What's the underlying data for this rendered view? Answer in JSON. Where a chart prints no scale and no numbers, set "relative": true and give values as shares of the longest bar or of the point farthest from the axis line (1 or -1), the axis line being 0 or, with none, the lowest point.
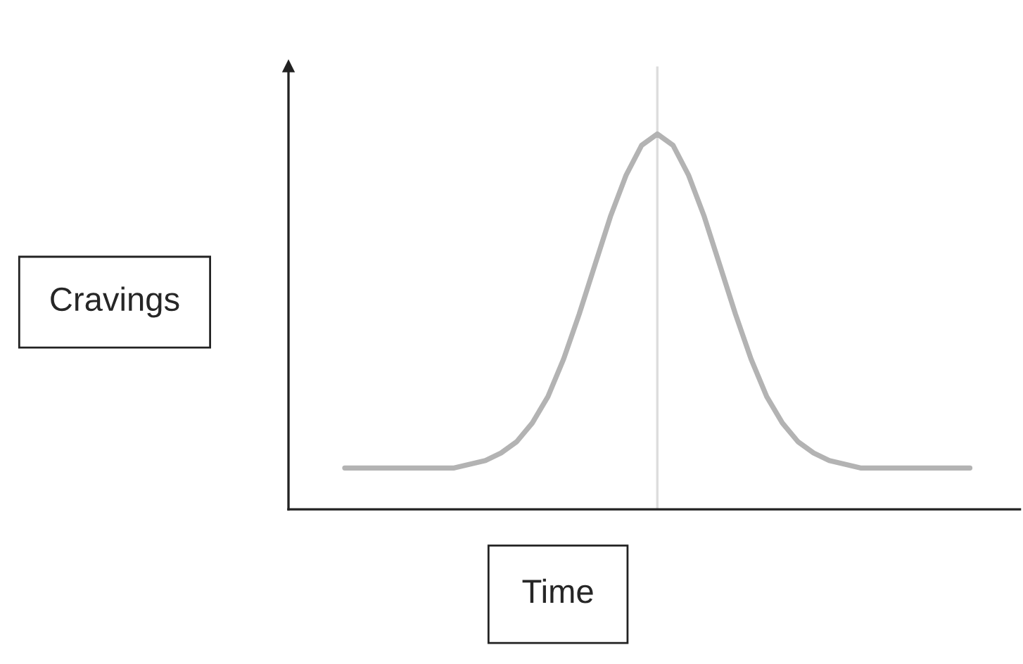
{
  "chart_data": {
    "type": "line",
    "relative": true,
    "xlabel": "Time",
    "ylabel": "Cravings",
    "categories": [
      null,
      null,
      null,
      null,
      null,
      null,
      null,
      null,
      null,
      null,
      null,
      null,
      null,
      null,
      null,
      null,
      null,
      null,
      null,
      null,
      null,
      null,
      null,
      null,
      null,
      null,
      null,
      null,
      null,
      null,
      null,
      null,
      null,
      null,
      null,
      null,
      null,
      null,
      null,
      null,
      null
    ],
    "series": [
      {
        "color": "#b3b3b3",
        "values": [
          0.11,
          0.11,
          0.11,
          0.11,
          0.11,
          0.11,
          0.11,
          0.11,
          0.12,
          0.13,
          0.15,
          0.18,
          0.23,
          0.3,
          0.4,
          0.52,
          0.65,
          0.78,
          0.89,
          0.97,
          1,
          0.97,
          0.89,
          0.78,
          0.65,
          0.52,
          0.4,
          0.3,
          0.23,
          0.18,
          0.15,
          0.13,
          0.12,
          0.11,
          0.11,
          0.11,
          0.11,
          0.11,
          0.11,
          0.11,
          0.11
        ]
      }
    ]
  }
}
